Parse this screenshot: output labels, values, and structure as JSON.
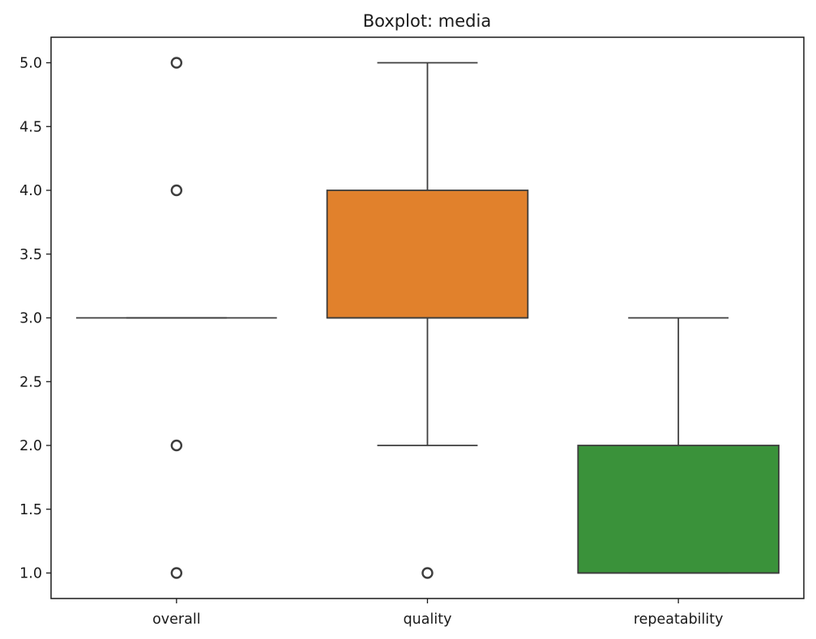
{
  "chart_data": {
    "type": "box",
    "title": "Boxplot: media",
    "xlabel": "",
    "ylabel": "",
    "ylim": [
      0.8,
      5.2
    ],
    "y_ticks": [
      "1.0",
      "1.5",
      "2.0",
      "2.5",
      "3.0",
      "3.5",
      "4.0",
      "4.5",
      "5.0"
    ],
    "grid": false,
    "categories": [
      "overall",
      "quality",
      "repeatability"
    ],
    "boxes": [
      {
        "category": "overall",
        "color": "#1f77b4",
        "q1": 3.0,
        "median": 3.0,
        "q3": 3.0,
        "whisker_low": 3.0,
        "whisker_high": 3.0,
        "outliers": [
          1.0,
          2.0,
          4.0,
          5.0
        ]
      },
      {
        "category": "quality",
        "color": "#e1812c",
        "q1": 3.0,
        "median": 3.0,
        "q3": 4.0,
        "whisker_low": 2.0,
        "whisker_high": 5.0,
        "outliers": [
          1.0
        ]
      },
      {
        "category": "repeatability",
        "color": "#3a923a",
        "q1": 1.0,
        "median": 1.0,
        "q3": 2.0,
        "whisker_low": 1.0,
        "whisker_high": 3.0,
        "outliers": []
      }
    ]
  }
}
